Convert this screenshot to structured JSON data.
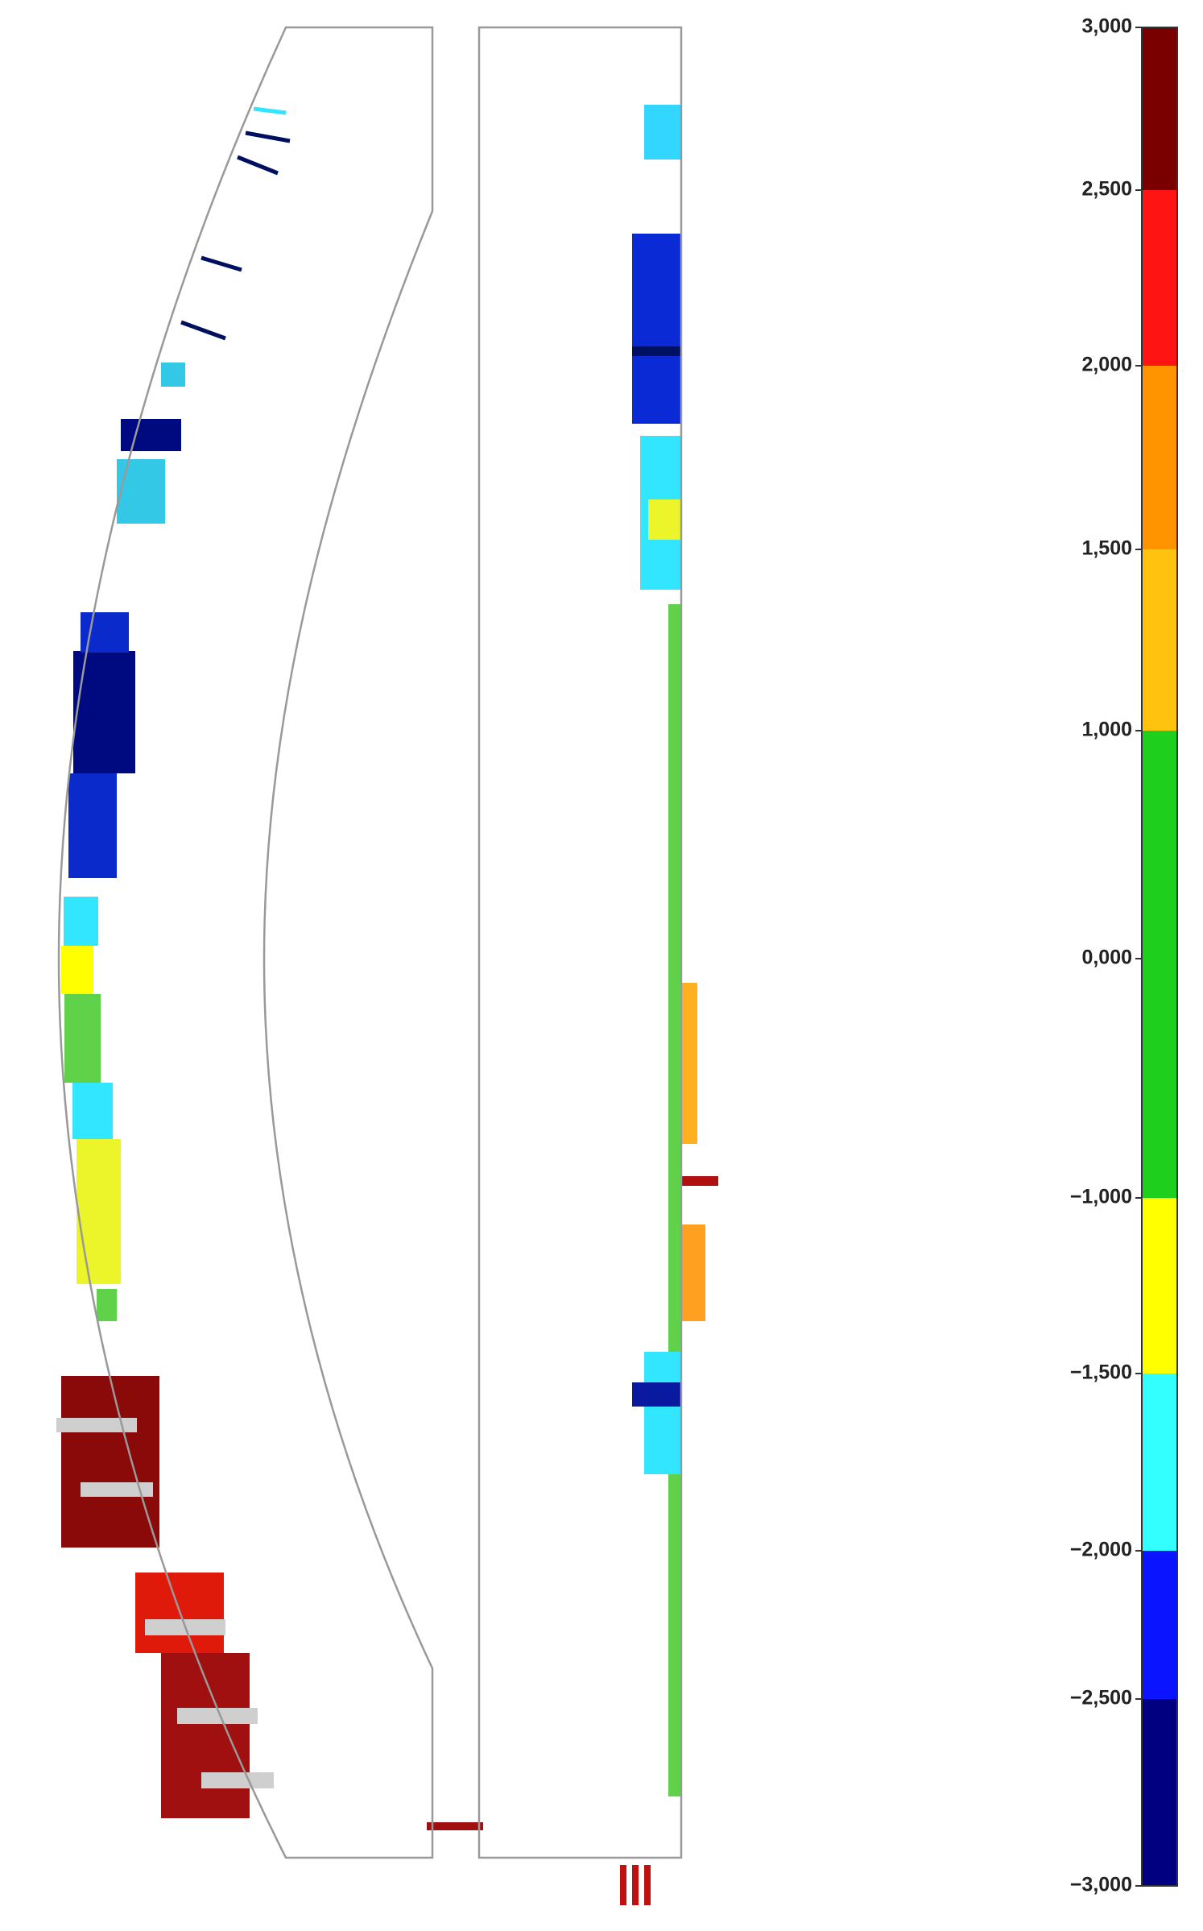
{
  "colorbar": {
    "ticks": [
      {
        "value": 3,
        "label": "3,000"
      },
      {
        "value": 2.5,
        "label": "2,500"
      },
      {
        "value": 2,
        "label": "2,000"
      },
      {
        "value": 1.5,
        "label": "1,500"
      },
      {
        "value": 1,
        "label": "1,000"
      },
      {
        "value": 0,
        "label": "0,000"
      },
      {
        "value": -1,
        "label": "−1,000"
      },
      {
        "value": -1.5,
        "label": "−1,500"
      },
      {
        "value": -2,
        "label": "−2,000"
      },
      {
        "value": -2.5,
        "label": "−2,500"
      },
      {
        "value": -3,
        "label": "−3,000"
      }
    ],
    "colors": [
      "#7a0000",
      "#ff1414",
      "#ff9400",
      "#ffc20e",
      "#1ecf1e",
      "#1ecf1e",
      "#ffff00",
      "#33ffff",
      "#0a14ff",
      "#000080"
    ]
  }
}
